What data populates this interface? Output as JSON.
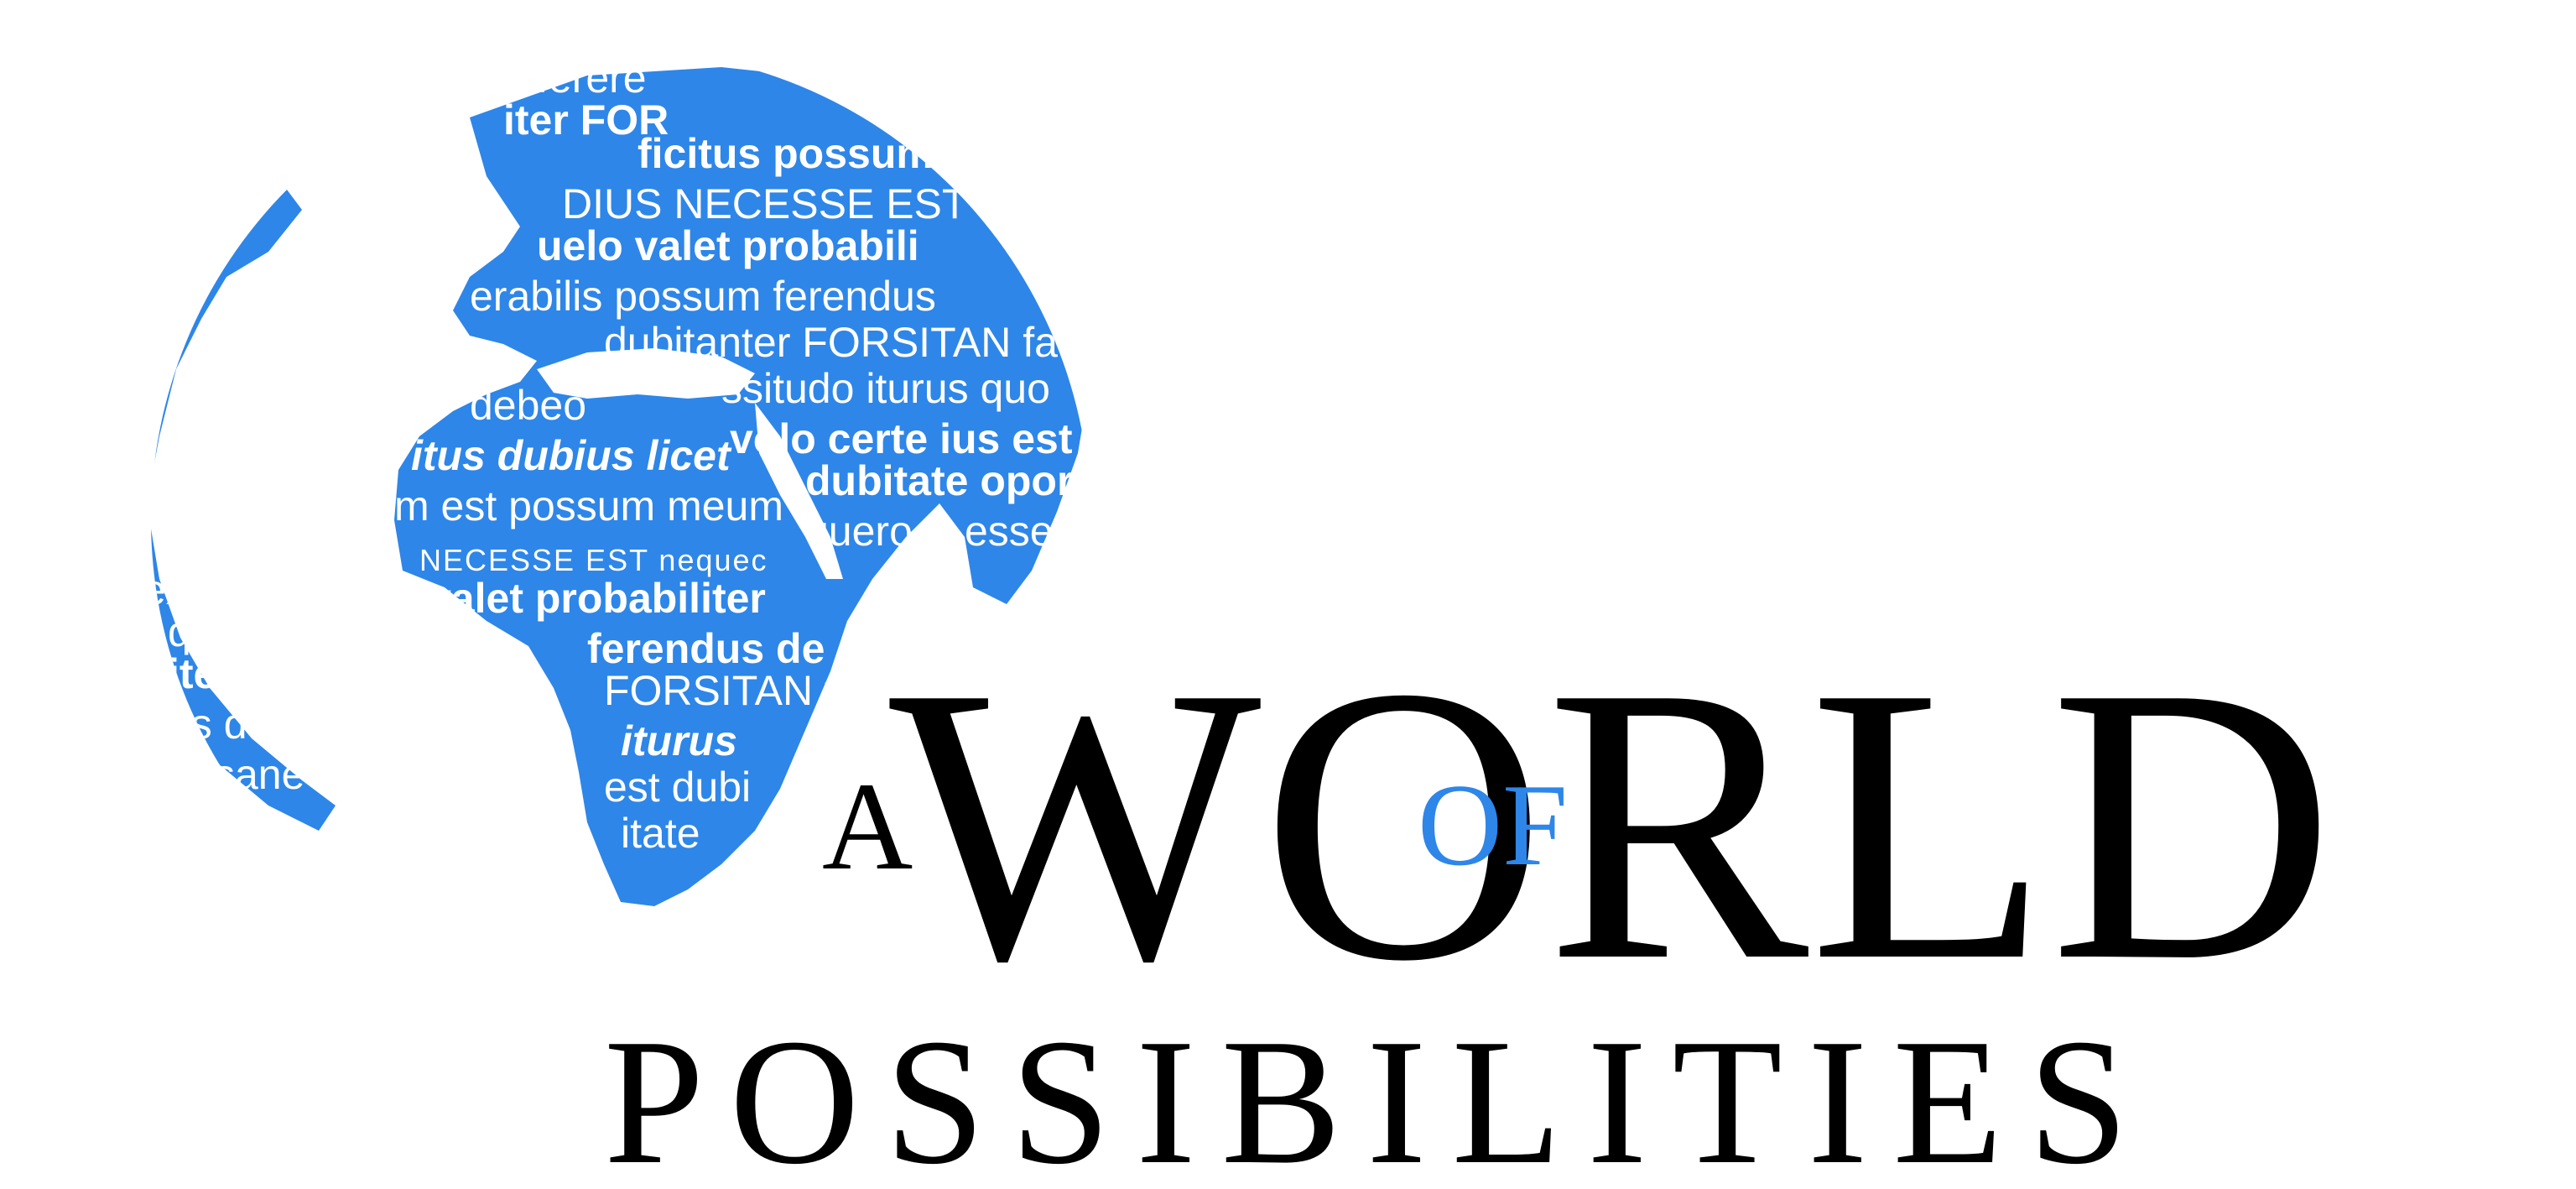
{
  "colors": {
    "globe_blue": "#2e86e8",
    "text_black": "#000000",
    "accent_blue": "#2e86e8",
    "background": "#ffffff"
  },
  "title": {
    "a": "A",
    "world": "WORLD",
    "of": "OF",
    "possibilities": "POSSIBILITIES"
  },
  "globe_words": [
    "ferere",
    "iter FOR",
    "ficitus possum",
    "DIUS NECESSE EST neq",
    "uelo valet probabili",
    "erabilis possum ferendus",
    "dubitanter FORSITAN fa",
    "debeo",
    "ssitudo iturus quo",
    "itus dubius licet",
    "volo certe ius est",
    "dubitate oportet",
    "m est possum meum",
    "quero",
    "esse",
    "NECESSE EST nequec",
    "valet probabiliter",
    "ferendus de",
    "FORSITAN fa",
    "iturus",
    "est dubi",
    "itate",
    "us de",
    "sane",
    "iter",
    "que",
    "ex"
  ]
}
